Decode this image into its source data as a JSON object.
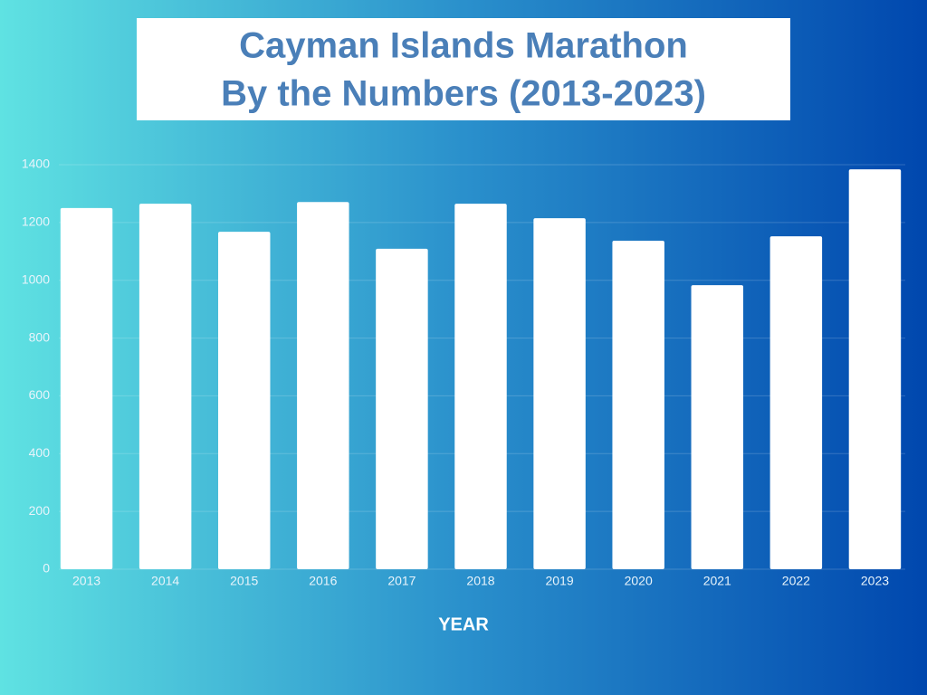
{
  "chart_data": {
    "type": "bar",
    "title": "Cayman Islands Marathon",
    "subtitle": "By the Numbers (2013-2023)",
    "x_label": "YEAR",
    "categories": [
      "2013",
      "2014",
      "2015",
      "2016",
      "2017",
      "2018",
      "2019",
      "2020",
      "2021",
      "2022",
      "2023"
    ],
    "values": [
      1250,
      1265,
      1168,
      1271,
      1109,
      1265,
      1215,
      1137,
      983,
      1152,
      1384
    ],
    "color": "#ffffff",
    "ylim": [
      0,
      1400
    ],
    "yticks": [
      0,
      200,
      400,
      600,
      800,
      1000,
      1200,
      1400
    ],
    "grid": true
  }
}
